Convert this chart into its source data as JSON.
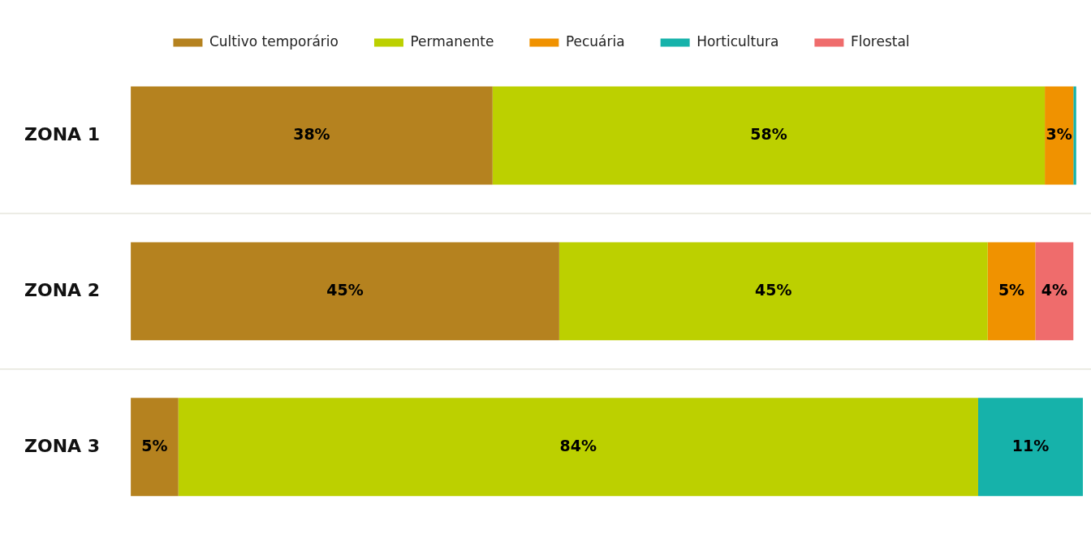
{
  "chart_data": {
    "type": "bar",
    "orientation": "horizontal",
    "stacked": true,
    "categories": [
      "ZONA 1",
      "ZONA 2",
      "ZONA 3"
    ],
    "series": [
      {
        "name": "Cultivo temporário",
        "color": "#b5821f",
        "values": [
          38,
          45,
          5
        ],
        "value_labels": [
          "38%",
          "45%",
          "5%"
        ]
      },
      {
        "name": "Permanente",
        "color": "#bcd000",
        "values": [
          58,
          45,
          84
        ],
        "value_labels": [
          "58%",
          "45%",
          "84%"
        ]
      },
      {
        "name": "Pecuária",
        "color": "#f09200",
        "values": [
          3,
          5,
          0
        ],
        "value_labels": [
          "3%",
          "5%",
          null
        ]
      },
      {
        "name": "Horticultura",
        "color": "#16b2aa",
        "values": [
          0.3,
          0,
          11
        ],
        "value_labels": [
          null,
          null,
          "11%"
        ]
      },
      {
        "name": "Florestal",
        "color": "#ef6c6c",
        "values": [
          0,
          4,
          0
        ],
        "value_labels": [
          null,
          "4%",
          null
        ]
      }
    ],
    "xlim": [
      0,
      100
    ],
    "tick_labels": "y",
    "legend": "top"
  }
}
